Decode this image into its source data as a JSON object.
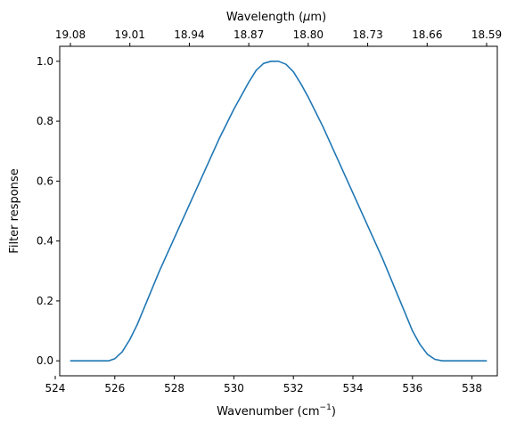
{
  "chart_data": {
    "type": "line",
    "xlabel_bottom_prefix": "Wavenumber (cm",
    "xlabel_bottom_sup": "−1",
    "xlabel_bottom_suffix": ")",
    "xlabel_top_prefix": "Wavelength (",
    "xlabel_top_mu": "μ",
    "xlabel_top_suffix": "m)",
    "ylabel": "Filter response",
    "xlim": [
      524.15,
      538.85
    ],
    "ylim": [
      -0.05,
      1.05
    ],
    "x_ticks": [
      524,
      526,
      528,
      530,
      532,
      534,
      536,
      538
    ],
    "y_ticks": [
      0.0,
      0.2,
      0.4,
      0.6,
      0.8,
      1.0
    ],
    "y_tick_labels": [
      "0.0",
      "0.2",
      "0.4",
      "0.6",
      "0.8",
      "1.0"
    ],
    "top_ticks": [
      19.08,
      19.01,
      18.94,
      18.87,
      18.8,
      18.73,
      18.66,
      18.59
    ],
    "top_tick_labels": [
      "19.08",
      "19.01",
      "18.94",
      "18.87",
      "18.80",
      "18.73",
      "18.66",
      "18.59"
    ],
    "line_color": "#1f77b4",
    "series": [
      {
        "x": [
          524.5,
          525.0,
          525.5,
          525.8,
          526.0,
          526.25,
          526.5,
          526.75,
          527.0,
          527.25,
          527.5,
          528.0,
          528.5,
          529.0,
          529.5,
          530.0,
          530.5,
          530.75,
          531.0,
          531.25,
          531.5,
          531.75,
          532.0,
          532.25,
          532.5,
          533.0,
          533.5,
          534.0,
          534.5,
          535.0,
          535.5,
          535.75,
          536.0,
          536.25,
          536.5,
          536.75,
          537.0,
          537.25,
          537.5,
          538.0,
          538.5
        ],
        "y": [
          0.0,
          0.0,
          0.0,
          0.0,
          0.007,
          0.03,
          0.07,
          0.12,
          0.18,
          0.24,
          0.3,
          0.41,
          0.52,
          0.63,
          0.74,
          0.84,
          0.93,
          0.97,
          0.993,
          1.0,
          1.0,
          0.99,
          0.965,
          0.925,
          0.88,
          0.78,
          0.67,
          0.56,
          0.45,
          0.34,
          0.22,
          0.16,
          0.1,
          0.055,
          0.022,
          0.005,
          0.0,
          0.0,
          0.0,
          0.0,
          0.0
        ]
      }
    ]
  }
}
